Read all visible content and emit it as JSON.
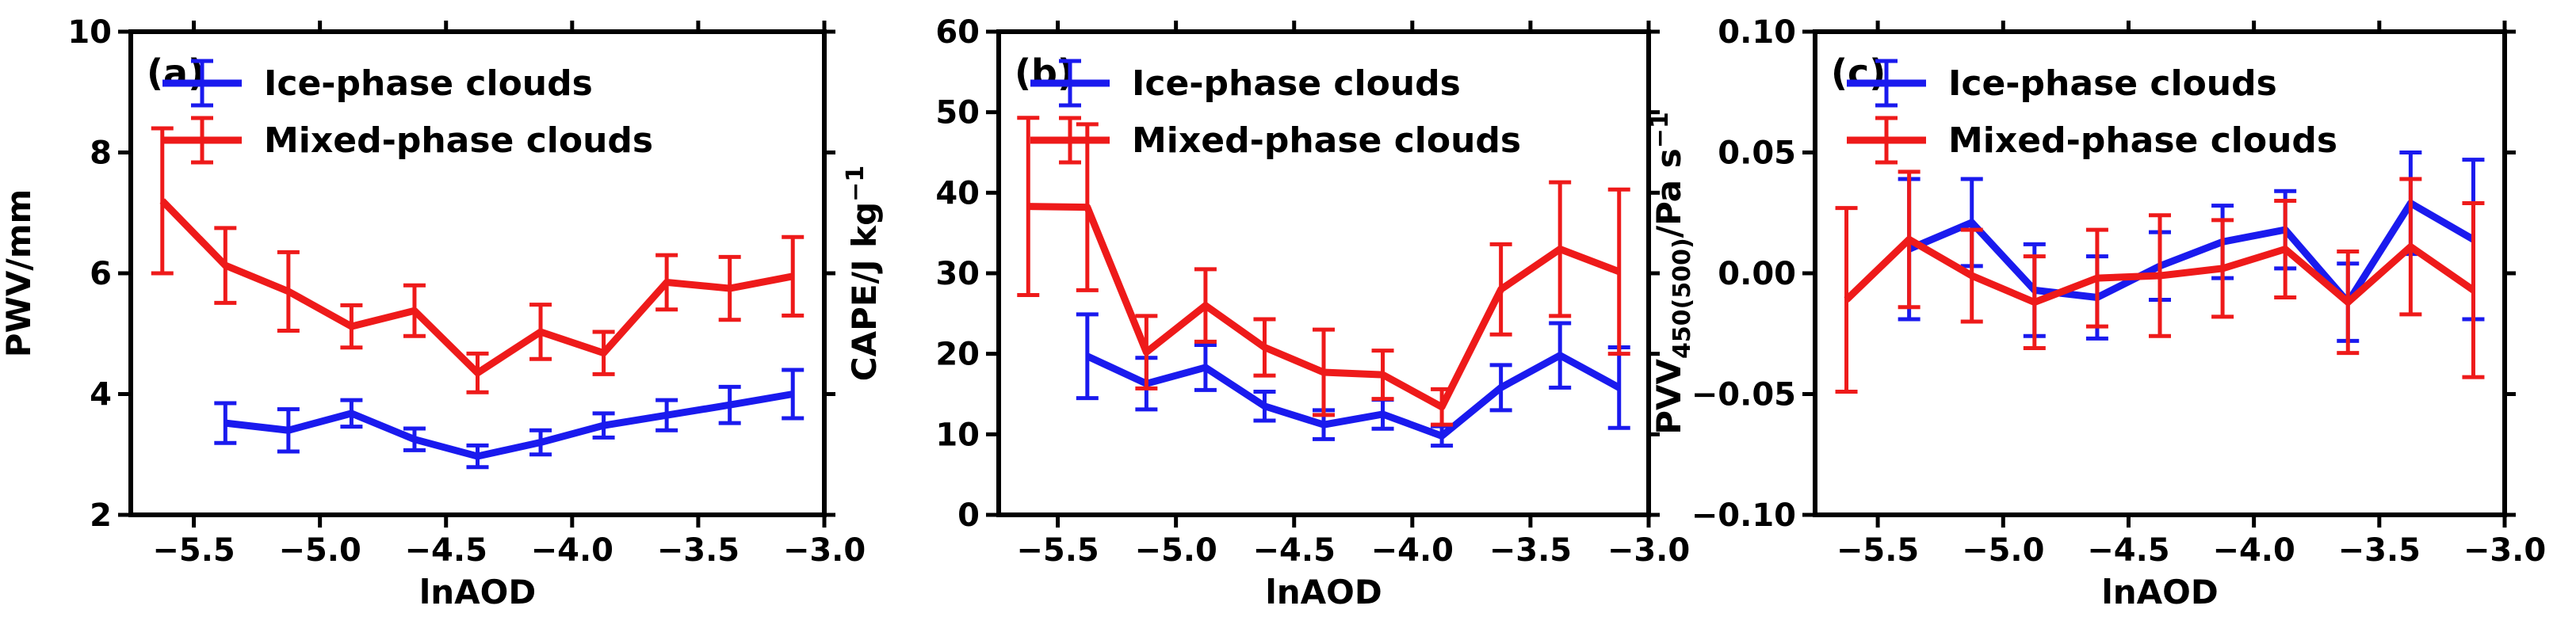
{
  "chart_data": [
    {
      "type": "line",
      "panel_label": "(a)",
      "ylabel": "PWV/mm",
      "xlabel": "lnAOD",
      "xlim": [
        -5.75,
        -3.0
      ],
      "ylim": [
        2,
        10
      ],
      "xticks": [
        -5.5,
        -5.0,
        -4.5,
        -4.0,
        -3.5,
        -3.0
      ],
      "xticklabels": [
        "−5.5",
        "−5.0",
        "−4.5",
        "−4.0",
        "−3.5",
        "−3.0"
      ],
      "yticks": [
        2,
        4,
        6,
        8,
        10
      ],
      "yticklabels": [
        "2",
        "4",
        "6",
        "8",
        "10"
      ],
      "legend_position": "top-left",
      "series": [
        {
          "name": "Ice-phase clouds",
          "color": "#1a1aee",
          "x": [
            -5.375,
            -5.125,
            -4.875,
            -4.625,
            -4.375,
            -4.125,
            -3.875,
            -3.625,
            -3.375,
            -3.125
          ],
          "values": [
            3.52,
            3.4,
            3.68,
            3.25,
            2.97,
            3.2,
            3.48,
            3.65,
            3.82,
            4.0
          ],
          "err": [
            0.33,
            0.35,
            0.22,
            0.18,
            0.18,
            0.2,
            0.2,
            0.25,
            0.3,
            0.4
          ]
        },
        {
          "name": "Mixed-phase clouds",
          "color": "#ee1a1a",
          "x": [
            -5.625,
            -5.375,
            -5.125,
            -4.875,
            -4.625,
            -4.375,
            -4.125,
            -3.875,
            -3.625,
            -3.375,
            -3.125
          ],
          "values": [
            7.2,
            6.13,
            5.7,
            5.12,
            5.38,
            4.35,
            5.03,
            4.68,
            5.85,
            5.75,
            5.95
          ],
          "err": [
            1.2,
            0.62,
            0.65,
            0.35,
            0.42,
            0.32,
            0.45,
            0.35,
            0.45,
            0.52,
            0.65
          ]
        }
      ]
    },
    {
      "type": "line",
      "panel_label": "(b)",
      "ylabel": "CAPE/J kg",
      "ylabel_sup": "−1",
      "xlabel": "lnAOD",
      "xlim": [
        -5.75,
        -3.0
      ],
      "ylim": [
        0,
        60
      ],
      "xticks": [
        -5.5,
        -5.0,
        -4.5,
        -4.0,
        -3.5,
        -3.0
      ],
      "xticklabels": [
        "−5.5",
        "−5.0",
        "−4.5",
        "−4.0",
        "−3.5",
        "−3.0"
      ],
      "yticks": [
        0,
        10,
        20,
        30,
        40,
        50,
        60
      ],
      "yticklabels": [
        "0",
        "10",
        "20",
        "30",
        "40",
        "50",
        "60"
      ],
      "legend_position": "top-left",
      "series": [
        {
          "name": "Ice-phase clouds",
          "color": "#1a1aee",
          "x": [
            -5.375,
            -5.125,
            -4.875,
            -4.625,
            -4.375,
            -4.125,
            -3.875,
            -3.625,
            -3.375,
            -3.125
          ],
          "values": [
            19.7,
            16.3,
            18.3,
            13.5,
            11.2,
            12.5,
            9.8,
            15.8,
            19.8,
            15.8
          ],
          "err": [
            5.2,
            3.2,
            2.8,
            1.8,
            1.8,
            1.8,
            1.2,
            2.8,
            4.0,
            5.0
          ]
        },
        {
          "name": "Mixed-phase clouds",
          "color": "#ee1a1a",
          "x": [
            -5.625,
            -5.375,
            -5.125,
            -4.875,
            -4.625,
            -4.375,
            -4.125,
            -3.875,
            -3.625,
            -3.375,
            -3.125
          ],
          "values": [
            38.3,
            38.2,
            20.2,
            26.0,
            20.8,
            17.7,
            17.4,
            13.4,
            28.0,
            33.0,
            30.2
          ],
          "err": [
            11.0,
            10.3,
            4.5,
            4.5,
            3.5,
            5.3,
            3.0,
            2.2,
            5.6,
            8.3,
            10.2
          ]
        }
      ]
    },
    {
      "type": "line",
      "panel_label": "(c)",
      "ylabel": "PVV",
      "ylabel_sub": "450(500)",
      "ylabel_tail": "/Pa s",
      "ylabel_sup": "−1",
      "xlabel": "lnAOD",
      "xlim": [
        -5.75,
        -3.0
      ],
      "ylim": [
        -0.1,
        0.1
      ],
      "xticks": [
        -5.5,
        -5.0,
        -4.5,
        -4.0,
        -3.5,
        -3.0
      ],
      "xticklabels": [
        "−5.5",
        "−5.0",
        "−4.5",
        "−4.0",
        "−3.5",
        "−3.0"
      ],
      "yticks": [
        -0.1,
        -0.05,
        0.0,
        0.05,
        0.1
      ],
      "yticklabels": [
        "−0.10",
        "−0.05",
        "0.00",
        "0.05",
        "0.10"
      ],
      "legend_position": "top-left",
      "series": [
        {
          "name": "Ice-phase clouds",
          "color": "#1a1aee",
          "x": [
            -5.375,
            -5.125,
            -4.875,
            -4.625,
            -4.375,
            -4.125,
            -3.875,
            -3.625,
            -3.375,
            -3.125
          ],
          "values": [
            0.01,
            0.021,
            -0.007,
            -0.01,
            0.003,
            0.013,
            0.018,
            -0.012,
            0.029,
            0.014
          ],
          "err": [
            0.029,
            0.018,
            0.019,
            0.017,
            0.014,
            0.015,
            0.016,
            0.016,
            0.021,
            0.033
          ]
        },
        {
          "name": "Mixed-phase clouds",
          "color": "#ee1a1a",
          "x": [
            -5.625,
            -5.375,
            -5.125,
            -4.875,
            -4.625,
            -4.375,
            -4.125,
            -3.875,
            -3.625,
            -3.375,
            -3.125
          ],
          "values": [
            -0.011,
            0.014,
            -0.001,
            -0.012,
            -0.002,
            -0.001,
            0.002,
            0.01,
            -0.012,
            0.011,
            -0.007
          ],
          "err": [
            0.038,
            0.028,
            0.019,
            0.019,
            0.02,
            0.025,
            0.02,
            0.02,
            0.021,
            0.028,
            0.036
          ]
        }
      ]
    }
  ]
}
